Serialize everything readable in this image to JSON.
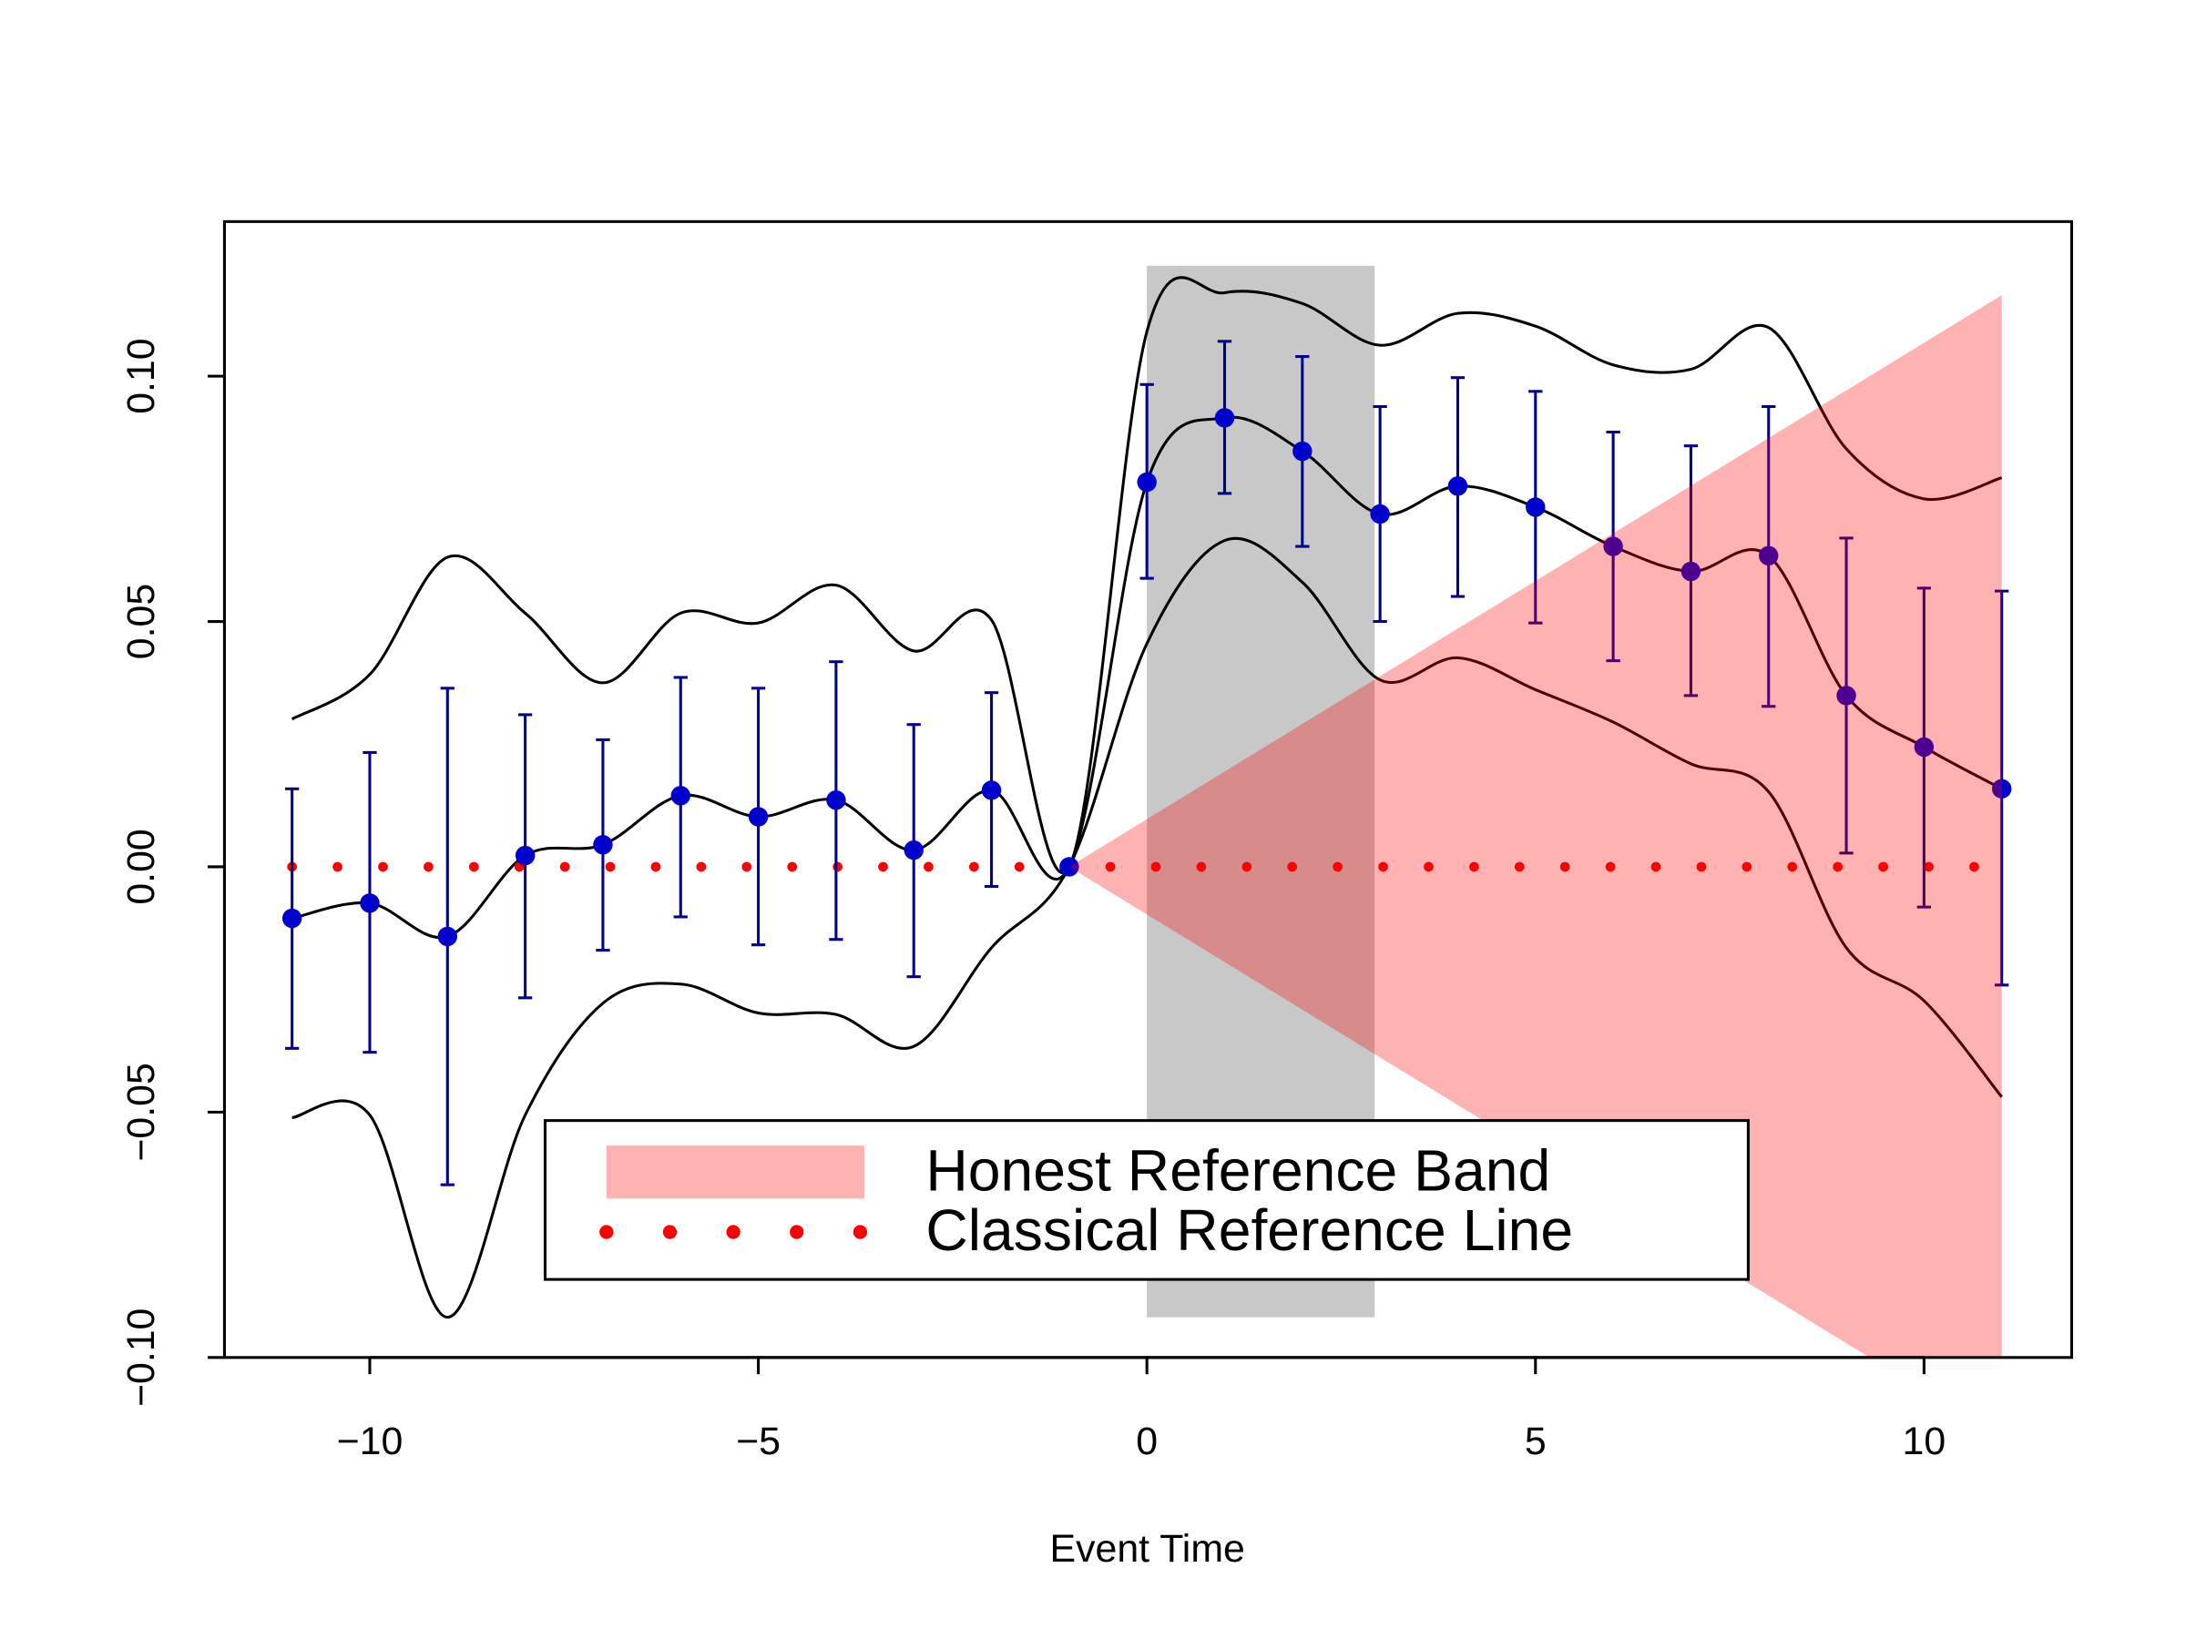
{
  "chart_data": {
    "type": "errorbar",
    "x_label": "Event Time",
    "xlim": [
      -11.87,
      11.9
    ],
    "ylim": [
      -0.1,
      0.1315
    ],
    "xticks": [
      {
        "value": -10,
        "label": "−10"
      },
      {
        "value": -5,
        "label": "−5"
      },
      0,
      5,
      10
    ],
    "yticks": [
      {
        "value": -0.1,
        "label": "−0.10"
      },
      {
        "value": -0.05,
        "label": "−0.05"
      },
      {
        "value": 0,
        "label": "0.00"
      },
      0.05,
      {
        "value": 0.1,
        "label": "0.10"
      }
    ],
    "x": [
      -11,
      -10,
      -9,
      -8,
      -7,
      -6,
      -5,
      -4,
      -3,
      -2,
      -1,
      0,
      1,
      2,
      3,
      4,
      5,
      6,
      7,
      8,
      9,
      10,
      11
    ],
    "estimates": {
      "color": "#0000cd",
      "bar_color": "#00008b",
      "values": [
        -0.0105,
        -0.0074,
        -0.0142,
        0.0023,
        0.0045,
        0.0145,
        0.0102,
        0.0136,
        0.0034,
        0.0156,
        0,
        0.0784,
        0.0915,
        0.0847,
        0.0719,
        0.0776,
        0.0733,
        0.0653,
        0.0602,
        0.0634,
        0.0349,
        0.0244,
        0.0159
      ],
      "upper": [
        0.0159,
        0.0233,
        0.0364,
        0.031,
        0.0259,
        0.0386,
        0.0364,
        0.0418,
        0.029,
        0.0355,
        null,
        0.0983,
        0.1071,
        0.104,
        0.0938,
        0.0997,
        0.0969,
        0.0886,
        0.0858,
        0.0938,
        0.067,
        0.0568,
        0.0562
      ],
      "lower": [
        -0.037,
        -0.0378,
        -0.0648,
        -0.0267,
        -0.017,
        -0.0102,
        -0.0159,
        -0.0148,
        -0.0224,
        -0.004,
        null,
        0.0588,
        0.0761,
        0.0653,
        0.05,
        0.0551,
        0.0497,
        0.042,
        0.0349,
        0.0327,
        0.0028,
        -0.0082,
        -0.0241
      ]
    },
    "band_curves": {
      "color": "#000000",
      "upper": [
        0.0301,
        0.0392,
        0.0631,
        0.0517,
        0.0375,
        0.0517,
        0.0497,
        0.0574,
        0.044,
        0.0503,
        0,
        0.1091,
        0.117,
        0.1148,
        0.1063,
        0.1128,
        0.1102,
        0.1023,
        0.1014,
        0.1099,
        0.0852,
        0.075,
        0.0793
      ],
      "lower": [
        -0.0511,
        -0.0506,
        -0.0918,
        -0.0506,
        -0.0278,
        -0.0239,
        -0.0298,
        -0.0301,
        -0.0366,
        -0.0165,
        0,
        0.0455,
        0.0665,
        0.058,
        0.0381,
        0.0426,
        0.0361,
        0.0295,
        0.021,
        0.0153,
        -0.0165,
        -0.0273,
        -0.0469
      ]
    },
    "shade": {
      "x": [
        0,
        2.93
      ],
      "y": [
        -0.0918,
        0.1225
      ],
      "color": "#c8c8c8"
    },
    "honest_band": {
      "name": "Honest Reference Band",
      "x": [
        -1,
        11
      ],
      "upper": [
        0,
        0.1165
      ],
      "lower": [
        0,
        -0.1165
      ],
      "color": "#ff0000",
      "opacity": 0.3
    },
    "reference_line": {
      "name": "Classical Reference Line",
      "value": 0,
      "x": [
        -11,
        11
      ],
      "color": "#ff0000"
    }
  }
}
